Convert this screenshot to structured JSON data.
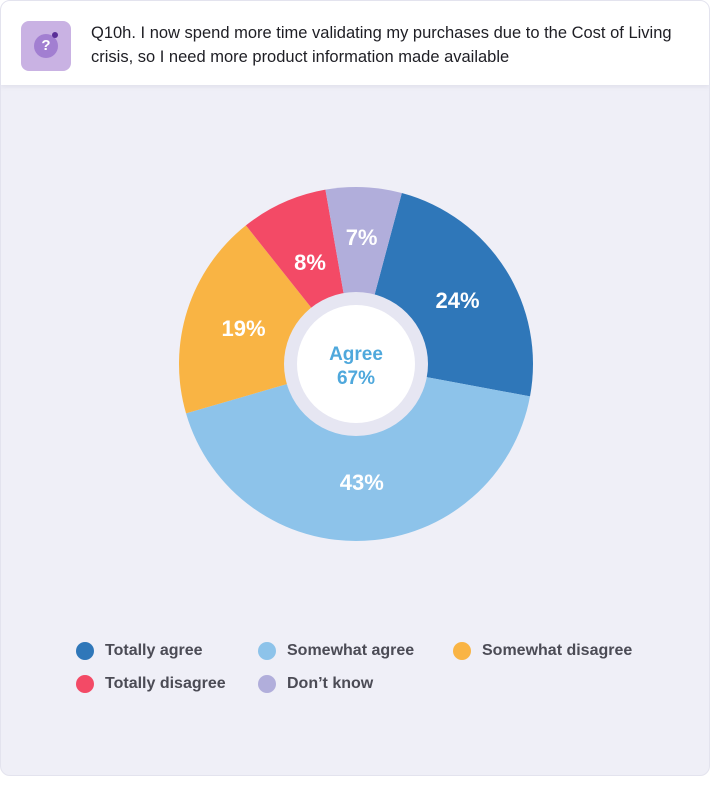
{
  "question": {
    "icon": "question-icon",
    "text": "Q10h. I now spend more time validating my purchases due to the Cost of Living crisis, so I need more product information made available"
  },
  "chart_data": {
    "type": "pie",
    "variant": "donut",
    "center_label": "Agree",
    "center_value": "67%",
    "slices": [
      {
        "name": "Totally agree",
        "value": 24,
        "label": "24%",
        "color": "#2f77b9"
      },
      {
        "name": "Somewhat agree",
        "value": 43,
        "label": "43%",
        "color": "#8dc3ea"
      },
      {
        "name": "Somewhat disagree",
        "value": 19,
        "label": "19%",
        "color": "#f9b444"
      },
      {
        "name": "Totally disagree",
        "value": 8,
        "label": "8%",
        "color": "#f34a66"
      },
      {
        "name": "Don’t know",
        "value": 7,
        "label": "7%",
        "color": "#b1aedb"
      }
    ],
    "legend_position": "bottom"
  }
}
